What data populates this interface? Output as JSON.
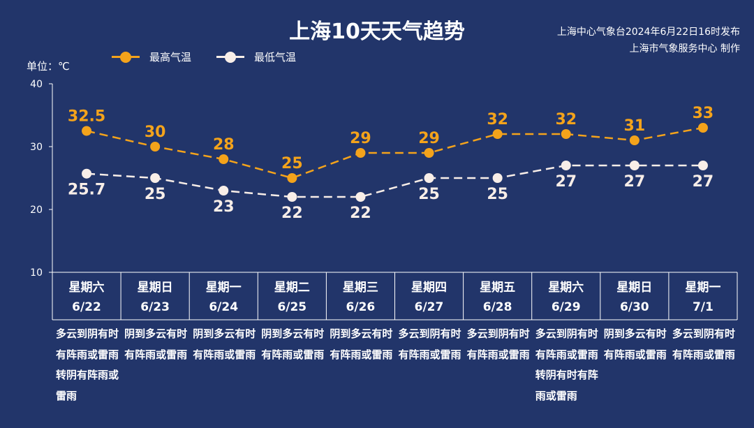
{
  "header": {
    "title": "上海10天天气趋势",
    "source_line1": "上海中心气象台2024年6月22日16时发布",
    "source_line2": "上海市气象服务中心 制作",
    "unit": "单位：℃"
  },
  "legend": [
    {
      "label": "最高气温",
      "color": "#f4a31b"
    },
    {
      "label": "最低气温",
      "color": "#f8eee8"
    }
  ],
  "days": [
    {
      "weekday": "星期六",
      "date": "6/22",
      "desc": "多云到阴有时有阵雨或雷雨转阴有阵雨或雷雨"
    },
    {
      "weekday": "星期日",
      "date": "6/23",
      "desc": "阴到多云有时有阵雨或雷雨"
    },
    {
      "weekday": "星期一",
      "date": "6/24",
      "desc": "阴到多云有时有阵雨或雷雨"
    },
    {
      "weekday": "星期二",
      "date": "6/25",
      "desc": "阴到多云有时有阵雨或雷雨"
    },
    {
      "weekday": "星期三",
      "date": "6/26",
      "desc": "阴到多云有时有阵雨或雷雨"
    },
    {
      "weekday": "星期四",
      "date": "6/27",
      "desc": "多云到阴有时有阵雨或雷雨"
    },
    {
      "weekday": "星期五",
      "date": "6/28",
      "desc": "多云到阴有时有阵雨或雷雨"
    },
    {
      "weekday": "星期六",
      "date": "6/29",
      "desc": "多云到阴有时有阵雨或雷雨转阴有时有阵雨或雷雨"
    },
    {
      "weekday": "星期日",
      "date": "6/30",
      "desc": "阴到多云有时有阵雨或雷雨"
    },
    {
      "weekday": "星期一",
      "date": "7/1",
      "desc": "多云到阴有时有阵雨或雷雨"
    }
  ],
  "chart_data": {
    "type": "line",
    "title": "上海10天天气趋势",
    "ylabel": "单位：℃",
    "ylim": [
      10,
      40
    ],
    "yticks": [
      10,
      20,
      30,
      40
    ],
    "categories": [
      "6/22",
      "6/23",
      "6/24",
      "6/25",
      "6/26",
      "6/27",
      "6/28",
      "6/29",
      "6/30",
      "7/1"
    ],
    "series": [
      {
        "name": "最高气温",
        "color": "#f4a31b",
        "values": [
          32.5,
          30,
          28,
          25,
          29,
          29,
          32,
          32,
          31,
          33
        ],
        "labels": [
          "32.5",
          "30",
          "28",
          "25",
          "29",
          "29",
          "32",
          "32",
          "31",
          "33"
        ]
      },
      {
        "name": "最低气温",
        "color": "#f8eee8",
        "values": [
          25.7,
          25,
          23,
          22,
          22,
          25,
          25,
          27,
          27,
          27
        ],
        "labels": [
          "25.7",
          "25",
          "23",
          "22",
          "22",
          "25",
          "25",
          "27",
          "27",
          "27"
        ]
      }
    ],
    "grid": false,
    "legend_position": "top-left"
  }
}
